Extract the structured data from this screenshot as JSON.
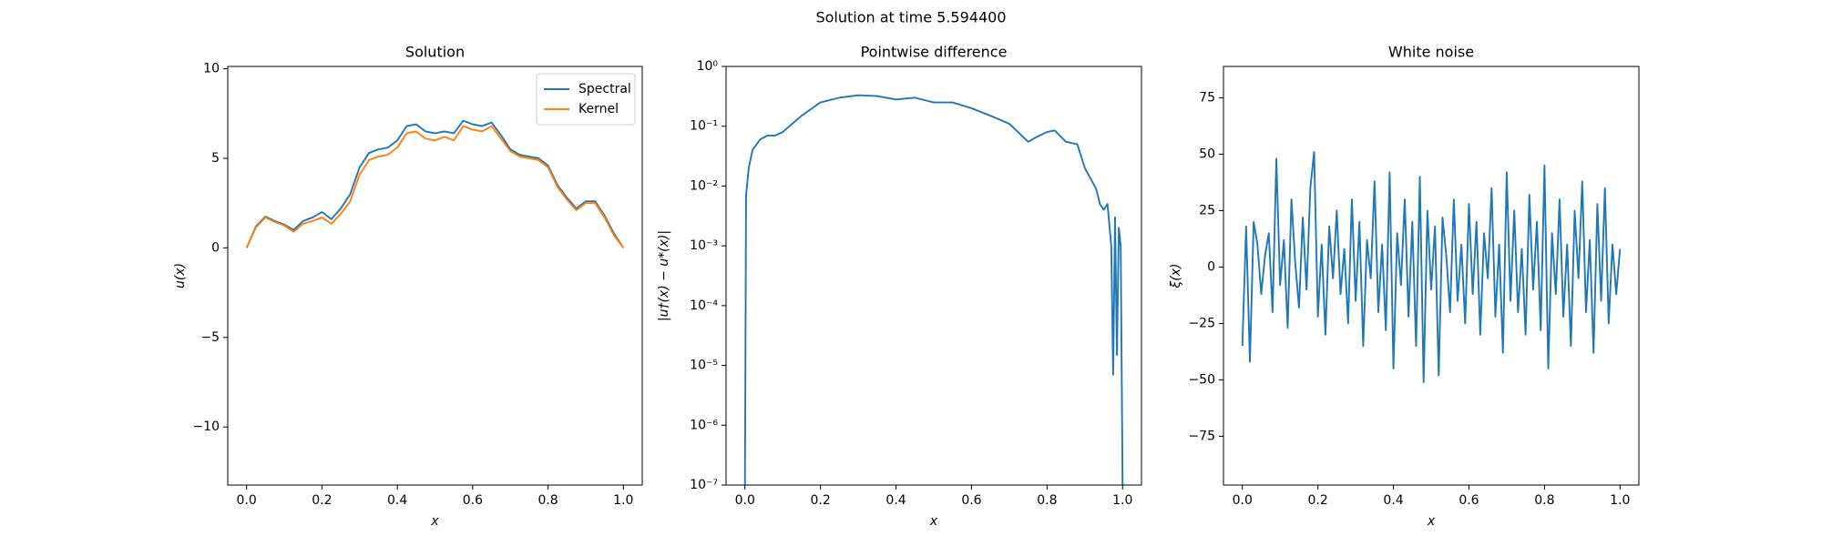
{
  "title": "Solution at time 5.594400",
  "chart_data": [
    {
      "type": "line",
      "title": "Solution",
      "xlabel": "x",
      "ylabel": "u(x)",
      "x": [
        0,
        0.025,
        0.05,
        0.075,
        0.1,
        0.125,
        0.15,
        0.175,
        0.2,
        0.225,
        0.25,
        0.275,
        0.3,
        0.325,
        0.35,
        0.375,
        0.4,
        0.425,
        0.45,
        0.475,
        0.5,
        0.525,
        0.55,
        0.575,
        0.6,
        0.625,
        0.65,
        0.675,
        0.7,
        0.725,
        0.75,
        0.775,
        0.8,
        0.825,
        0.85,
        0.875,
        0.9,
        0.925,
        0.95,
        0.975,
        1
      ],
      "series": [
        {
          "name": "Spectral",
          "color": "#1f77b4",
          "values": [
            0,
            1.2,
            1.75,
            1.5,
            1.3,
            1.0,
            1.5,
            1.7,
            2.0,
            1.6,
            2.2,
            3.0,
            4.5,
            5.3,
            5.5,
            5.6,
            6.0,
            6.8,
            6.9,
            6.5,
            6.4,
            6.5,
            6.4,
            7.1,
            6.9,
            6.8,
            7.0,
            6.3,
            5.5,
            5.2,
            5.1,
            5.0,
            4.6,
            3.5,
            2.8,
            2.2,
            2.6,
            2.6,
            1.8,
            0.8,
            0
          ]
        },
        {
          "name": "Kernel",
          "color": "#ff7f0e",
          "values": [
            0,
            1.15,
            1.7,
            1.45,
            1.25,
            0.9,
            1.35,
            1.5,
            1.7,
            1.35,
            1.9,
            2.6,
            4.1,
            4.9,
            5.1,
            5.2,
            5.6,
            6.4,
            6.5,
            6.1,
            6.0,
            6.2,
            6.0,
            6.8,
            6.6,
            6.5,
            6.8,
            6.1,
            5.4,
            5.1,
            5.0,
            4.9,
            4.5,
            3.4,
            2.7,
            2.1,
            2.5,
            2.5,
            1.7,
            0.7,
            0
          ]
        }
      ],
      "xlim": [
        -0.05,
        1.05
      ],
      "xticks": [
        {
          "value": 0,
          "label": "0.0"
        },
        {
          "value": 0.2,
          "label": "0.2"
        },
        {
          "value": 0.4,
          "label": "0.4"
        },
        {
          "value": 0.6,
          "label": "0.6"
        },
        {
          "value": 0.8,
          "label": "0.8"
        },
        {
          "value": 1,
          "label": "1.0"
        }
      ],
      "ylim": [
        -13.24,
        10.13
      ],
      "yticks": [
        {
          "value": -10,
          "label": "−10"
        },
        {
          "value": -5,
          "label": "−5"
        },
        0,
        5,
        10
      ],
      "legend": "upper right"
    },
    {
      "type": "line",
      "title": "Pointwise difference",
      "xlabel": "x",
      "ylabel": "|u†(x) − u*(x)|",
      "yscale": "log",
      "x": [
        0,
        0.003,
        0.01,
        0.02,
        0.04,
        0.06,
        0.08,
        0.1,
        0.15,
        0.2,
        0.25,
        0.3,
        0.35,
        0.4,
        0.45,
        0.5,
        0.55,
        0.6,
        0.65,
        0.7,
        0.75,
        0.77,
        0.8,
        0.82,
        0.85,
        0.88,
        0.9,
        0.93,
        0.94,
        0.95,
        0.96,
        0.97,
        0.975,
        0.98,
        0.985,
        0.99,
        0.995,
        1
      ],
      "series": [
        {
          "name": null,
          "color": "#1f77b4",
          "values": [
            1e-07,
            0.007,
            0.02,
            0.04,
            0.06,
            0.07,
            0.07,
            0.08,
            0.15,
            0.25,
            0.3,
            0.33,
            0.32,
            0.28,
            0.3,
            0.25,
            0.25,
            0.2,
            0.15,
            0.11,
            0.055,
            0.065,
            0.08,
            0.085,
            0.055,
            0.05,
            0.02,
            0.009,
            0.005,
            0.004,
            0.005,
            0.001,
            7e-06,
            0.003,
            1.5e-05,
            0.002,
            0.001,
            1e-07
          ]
        }
      ],
      "xlim": [
        -0.05,
        1.05
      ],
      "xticks": [
        {
          "value": 0,
          "label": "0.0"
        },
        {
          "value": 0.2,
          "label": "0.2"
        },
        {
          "value": 0.4,
          "label": "0.4"
        },
        {
          "value": 0.6,
          "label": "0.6"
        },
        {
          "value": 0.8,
          "label": "0.8"
        },
        {
          "value": 1,
          "label": "1.0"
        }
      ],
      "ylim": [
        1e-07,
        1
      ],
      "yticks": [
        {
          "value": 1e-07,
          "label": "10⁻⁷"
        },
        {
          "value": 1e-06,
          "label": "10⁻⁶"
        },
        {
          "value": 1e-05,
          "label": "10⁻⁵"
        },
        {
          "value": 0.0001,
          "label": "10⁻⁴"
        },
        {
          "value": 0.001,
          "label": "10⁻³"
        },
        {
          "value": 0.01,
          "label": "10⁻²"
        },
        {
          "value": 0.1,
          "label": "10⁻¹"
        },
        {
          "value": 1,
          "label": "10⁰"
        }
      ]
    },
    {
      "type": "line",
      "title": "White noise",
      "xlabel": "x",
      "ylabel": "ξ(x)",
      "x": [
        0,
        0.01,
        0.02,
        0.03,
        0.04,
        0.05,
        0.06,
        0.07,
        0.08,
        0.09,
        0.1,
        0.11,
        0.12,
        0.13,
        0.14,
        0.15,
        0.16,
        0.17,
        0.18,
        0.19,
        0.2,
        0.21,
        0.22,
        0.23,
        0.24,
        0.25,
        0.26,
        0.27,
        0.28,
        0.29,
        0.3,
        0.31,
        0.32,
        0.33,
        0.34,
        0.35,
        0.36,
        0.37,
        0.38,
        0.39,
        0.4,
        0.41,
        0.42,
        0.43,
        0.44,
        0.45,
        0.46,
        0.47,
        0.48,
        0.49,
        0.5,
        0.51,
        0.52,
        0.53,
        0.54,
        0.55,
        0.56,
        0.57,
        0.58,
        0.59,
        0.6,
        0.61,
        0.62,
        0.63,
        0.64,
        0.65,
        0.66,
        0.67,
        0.68,
        0.69,
        0.7,
        0.71,
        0.72,
        0.73,
        0.74,
        0.75,
        0.76,
        0.77,
        0.78,
        0.79,
        0.8,
        0.81,
        0.82,
        0.83,
        0.84,
        0.85,
        0.86,
        0.87,
        0.88,
        0.89,
        0.9,
        0.91,
        0.92,
        0.93,
        0.94,
        0.95,
        0.96,
        0.97,
        0.98,
        0.99,
        1
      ],
      "series": [
        {
          "name": null,
          "color": "#1f77b4",
          "values": [
            -35,
            18,
            -42,
            20,
            10,
            -12,
            5,
            15,
            -20,
            48,
            -8,
            12,
            -27,
            30,
            2,
            -18,
            22,
            -10,
            35,
            51,
            -22,
            10,
            -30,
            18,
            -5,
            25,
            -12,
            8,
            -25,
            30,
            -15,
            20,
            -35,
            12,
            -5,
            38,
            -20,
            10,
            -28,
            42,
            -45,
            15,
            -8,
            30,
            -22,
            20,
            -35,
            40,
            -51,
            25,
            -10,
            18,
            -48,
            22,
            5,
            -20,
            30,
            -15,
            10,
            -25,
            28,
            -12,
            20,
            -30,
            15,
            -5,
            35,
            -22,
            10,
            -38,
            42,
            -15,
            25,
            -20,
            8,
            -30,
            32,
            -10,
            20,
            -28,
            45,
            -45,
            15,
            -12,
            30,
            -22,
            10,
            -35,
            25,
            -5,
            38,
            -20,
            12,
            -38,
            28,
            -15,
            35,
            -25,
            10,
            -12,
            8
          ]
        }
      ],
      "xlim": [
        -0.05,
        1.05
      ],
      "xticks": [
        {
          "value": 0,
          "label": "0.0"
        },
        {
          "value": 0.2,
          "label": "0.2"
        },
        {
          "value": 0.4,
          "label": "0.4"
        },
        {
          "value": 0.6,
          "label": "0.6"
        },
        {
          "value": 0.8,
          "label": "0.8"
        },
        {
          "value": 1,
          "label": "1.0"
        }
      ],
      "ylim": [
        -96.6,
        88.9
      ],
      "yticks": [
        {
          "value": -75,
          "label": "−75"
        },
        {
          "value": -50,
          "label": "−50"
        },
        {
          "value": -25,
          "label": "−25"
        },
        0,
        25,
        50,
        75
      ]
    }
  ]
}
